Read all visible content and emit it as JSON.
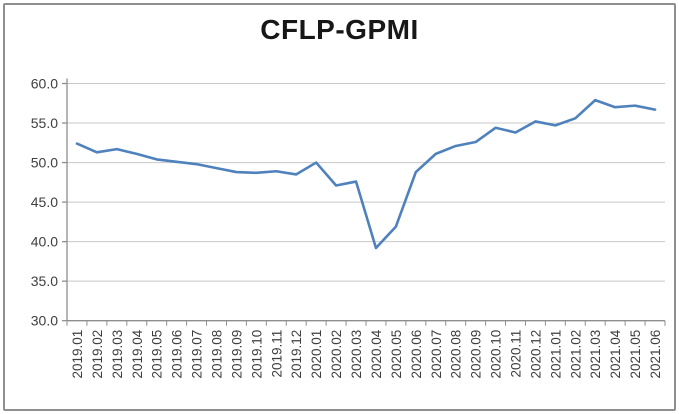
{
  "figure": {
    "title": "CFLP-GPMI"
  },
  "chart_data": {
    "type": "line",
    "title": "CFLP-GPMI",
    "xlabel": "",
    "ylabel": "",
    "ylim": [
      30.0,
      60.0
    ],
    "ytick_interval": 5.0,
    "ytick_labels": [
      "60.0",
      "55.0",
      "50.0",
      "45.0",
      "40.0",
      "35.0",
      "30.0"
    ],
    "grid": "horizontal",
    "legend_position": "none",
    "x_label_rotation": -90,
    "categories": [
      "2019.01",
      "2019.02",
      "2019.03",
      "2019.04",
      "2019.05",
      "2019.06",
      "2019.07",
      "2019.08",
      "2019.09",
      "2019.10",
      "2019.11",
      "2019.12",
      "2020.01",
      "2020.02",
      "2020.03",
      "2020.04",
      "2020.05",
      "2020.06",
      "2020.07",
      "2020.08",
      "2020.09",
      "2020.10",
      "2020.11",
      "2020.12",
      "2021.01",
      "2021.02",
      "2021.03",
      "2021.04",
      "2021.05",
      "2021.06"
    ],
    "series": [
      {
        "name": "CFLP-GPMI",
        "values": [
          52.4,
          51.3,
          51.7,
          51.1,
          50.4,
          50.1,
          49.8,
          49.3,
          48.8,
          48.7,
          48.9,
          48.5,
          50.0,
          47.1,
          47.6,
          39.2,
          41.9,
          48.8,
          51.1,
          52.1,
          52.6,
          54.4,
          53.8,
          55.2,
          54.7,
          55.6,
          57.9,
          57.0,
          57.2,
          56.7
        ]
      }
    ],
    "colors": {
      "line": "#4F81BD",
      "gridline": "#C8C8C8",
      "axis": "#8E8E8E",
      "tick_text": "#3F3F3F",
      "title_text": "#171717",
      "figure_border": "#8F8F8F",
      "background": "#FFFFFF"
    }
  }
}
